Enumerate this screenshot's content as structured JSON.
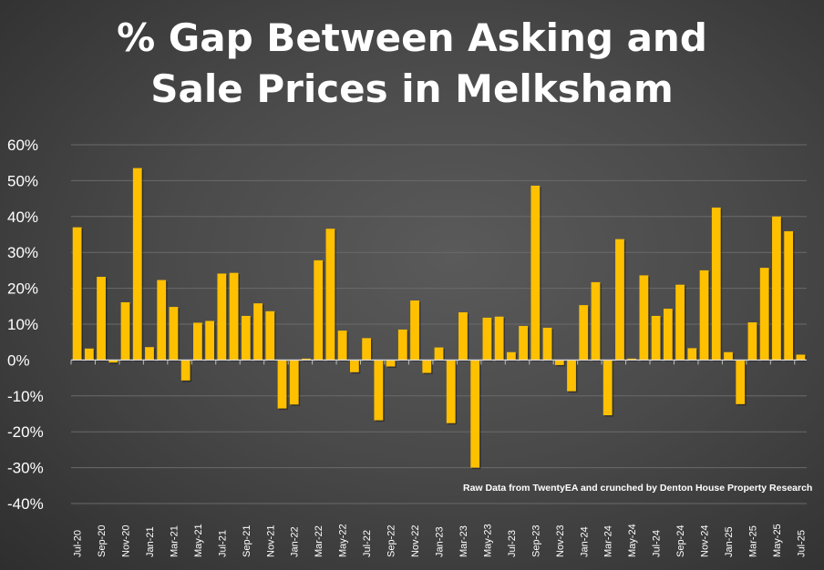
{
  "chart_data": {
    "type": "bar",
    "title_lines": [
      "% Gap Between Asking and",
      "Sale Prices in Melksham"
    ],
    "annotation": "Raw Data from TwentyEA and crunched by Denton House Property Research",
    "xlabel": "",
    "ylabel": "",
    "ylim": [
      -40,
      60
    ],
    "yticks": [
      "60%",
      "50%",
      "40%",
      "30%",
      "20%",
      "10%",
      "0%",
      "-10%",
      "-20%",
      "-30%",
      "-40%"
    ],
    "ytick_values": [
      60,
      50,
      40,
      30,
      20,
      10,
      0,
      -10,
      -20,
      -30,
      -40
    ],
    "grid": true,
    "bar_color": "#FFC000",
    "categories": [
      "Jul-20",
      "Aug-20",
      "Sep-20",
      "Oct-20",
      "Nov-20",
      "Dec-20",
      "Jan-21",
      "Feb-21",
      "Mar-21",
      "Apr-21",
      "May-21",
      "Jun-21",
      "Jul-21",
      "Aug-21",
      "Sep-21",
      "Oct-21",
      "Nov-21",
      "Dec-21",
      "Jan-22",
      "Feb-22",
      "Mar-22",
      "Apr-22",
      "May-22",
      "Jun-22",
      "Jul-22",
      "Aug-22",
      "Sep-22",
      "Oct-22",
      "Nov-22",
      "Dec-22",
      "Jan-23",
      "Feb-23",
      "Mar-23",
      "Apr-23",
      "May-23",
      "Jun-23",
      "Jul-23",
      "Aug-23",
      "Sep-23",
      "Oct-23",
      "Nov-23",
      "Dec-23",
      "Jan-24",
      "Feb-24",
      "Mar-24",
      "Apr-24",
      "May-24",
      "Jun-24",
      "Jul-24",
      "Aug-24",
      "Sep-24",
      "Oct-24",
      "Nov-24",
      "Dec-24",
      "Jan-25",
      "Feb-25",
      "Mar-25",
      "Apr-25",
      "May-25",
      "Jun-25",
      "Jul-25"
    ],
    "values": [
      37,
      3.2,
      23.2,
      -0.7,
      16.1,
      53.5,
      3.6,
      22.3,
      14.8,
      -5.7,
      10.4,
      10.9,
      24.1,
      24.3,
      12.3,
      15.8,
      13.6,
      -13.5,
      -12.4,
      0.4,
      27.8,
      36.6,
      8.2,
      -3.4,
      6.1,
      -16.8,
      -1.8,
      8.5,
      16.6,
      -3.6,
      3.5,
      -17.6,
      13.3,
      -30,
      11.8,
      12.1,
      2.2,
      9.5,
      48.6,
      9.0,
      -1.4,
      -8.7,
      15.3,
      21.7,
      -15.4,
      33.7,
      0.4,
      23.6,
      12.3,
      14.3,
      21.0,
      3.3,
      25.0,
      42.5,
      2.2,
      -12.3,
      10.5,
      25.7,
      40,
      35.9,
      1.5
    ]
  }
}
